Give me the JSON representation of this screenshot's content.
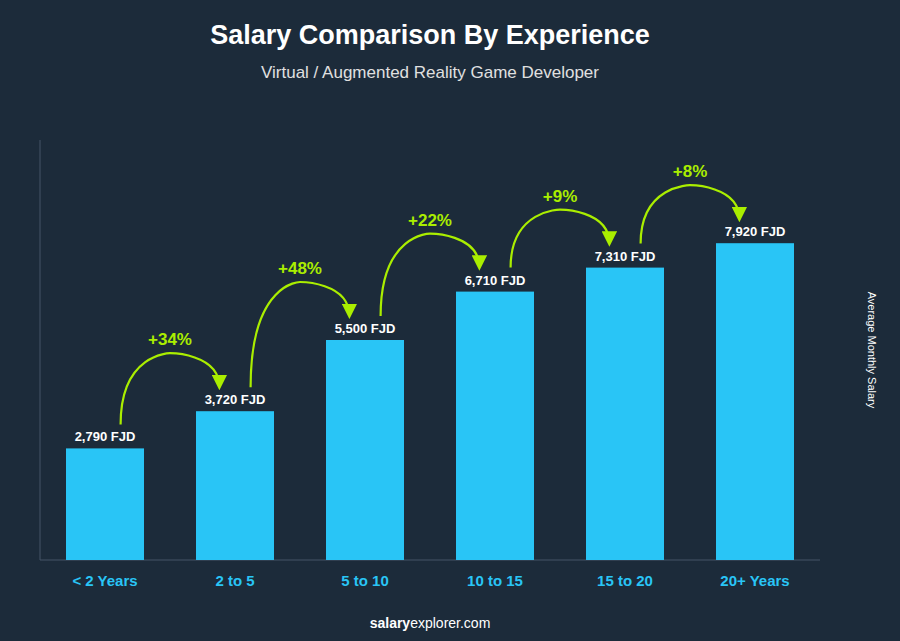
{
  "chart_data": {
    "type": "bar",
    "title": "Salary Comparison By Experience",
    "subtitle": "Virtual / Augmented Reality Game Developer",
    "y_label": "Average Monthly Salary",
    "categories": [
      "< 2 Years",
      "2 to 5",
      "5 to 10",
      "10 to 15",
      "15 to 20",
      "20+ Years"
    ],
    "values": [
      2790,
      3720,
      5500,
      6710,
      7310,
      7920
    ],
    "value_labels": [
      "2,790 FJD",
      "3,720 FJD",
      "5,500 FJD",
      "6,710 FJD",
      "7,310 FJD",
      "7,920 FJD"
    ],
    "data_labels": true,
    "annotations": [
      "+34%",
      "+48%",
      "+22%",
      "+9%",
      "+8%"
    ],
    "watermark": [
      "salary",
      "explorer.com"
    ],
    "color": "#29c5f6",
    "ylim": [
      0,
      10500
    ],
    "grid": false,
    "tick_labels": "x"
  }
}
